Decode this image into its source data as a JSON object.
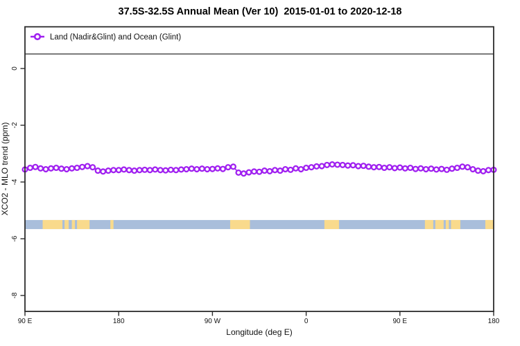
{
  "page": {
    "title": "37.5S-32.5S Annual Mean (Ver 10)  2015-01-01 to 2020-12-18"
  },
  "chart_data": {
    "type": "line",
    "title": "37.5S-32.5S Annual Mean (Ver 10)  2015-01-01 to 2020-12-18",
    "xlabel": "Longitude (deg E)",
    "ylabel": "XCO2 - MLO trend (ppm)",
    "x_tick_labels": [
      "90 E",
      "180",
      "90 W",
      "0",
      "90 E",
      "180"
    ],
    "x_tick_lons": [
      90,
      180,
      270,
      360,
      450,
      540
    ],
    "y_ticks": [
      0,
      -2,
      -4,
      -6,
      -8
    ],
    "xlim_lon": [
      90,
      540
    ],
    "ylim": [
      -8.6,
      1.5
    ],
    "grid": false,
    "legend": {
      "label": "Land (Nadir&Glint) and Ocean (Glint)",
      "position": "top",
      "marker": "open-circle-on-line",
      "color": "#A020F0"
    },
    "series": [
      {
        "name": "Land (Nadir&Glint) and Ocean (Glint)",
        "color": "#A020F0",
        "marker_fill": "#ffffff",
        "lon_start": 90,
        "lon_step": 5,
        "values_ppm": [
          -3.56,
          -3.5,
          -3.47,
          -3.52,
          -3.55,
          -3.52,
          -3.5,
          -3.53,
          -3.55,
          -3.52,
          -3.5,
          -3.47,
          -3.44,
          -3.48,
          -3.6,
          -3.63,
          -3.6,
          -3.58,
          -3.58,
          -3.56,
          -3.58,
          -3.6,
          -3.58,
          -3.57,
          -3.58,
          -3.56,
          -3.58,
          -3.59,
          -3.57,
          -3.58,
          -3.56,
          -3.55,
          -3.53,
          -3.55,
          -3.53,
          -3.55,
          -3.54,
          -3.52,
          -3.54,
          -3.48,
          -3.46,
          -3.67,
          -3.7,
          -3.66,
          -3.63,
          -3.64,
          -3.6,
          -3.62,
          -3.58,
          -3.6,
          -3.55,
          -3.57,
          -3.52,
          -3.55,
          -3.5,
          -3.48,
          -3.45,
          -3.44,
          -3.4,
          -3.38,
          -3.39,
          -3.4,
          -3.42,
          -3.41,
          -3.44,
          -3.43,
          -3.46,
          -3.48,
          -3.47,
          -3.5,
          -3.48,
          -3.51,
          -3.49,
          -3.52,
          -3.5,
          -3.54,
          -3.52,
          -3.55,
          -3.53,
          -3.56,
          -3.54,
          -3.57,
          -3.53,
          -3.5,
          -3.46,
          -3.48,
          -3.55,
          -3.6,
          -3.62,
          -3.58,
          -3.57
        ]
      }
    ],
    "map_band": {
      "note": "latitude strip map 37.5S-32.5S drawn across plot",
      "ocean_color": "#A9BEDB",
      "land_color": "#F9DA8C",
      "ppm_top": -5.34,
      "ppm_bottom": -5.66,
      "land_segments_lon": [
        [
          107,
          126
        ],
        [
          128,
          132
        ],
        [
          135,
          138
        ],
        [
          140,
          152
        ],
        [
          172,
          175
        ],
        [
          287,
          306
        ],
        [
          377.5,
          391.5
        ],
        [
          474,
          482
        ],
        [
          484,
          492
        ],
        [
          494,
          497
        ],
        [
          499,
          508
        ],
        [
          532,
          540
        ]
      ]
    }
  }
}
